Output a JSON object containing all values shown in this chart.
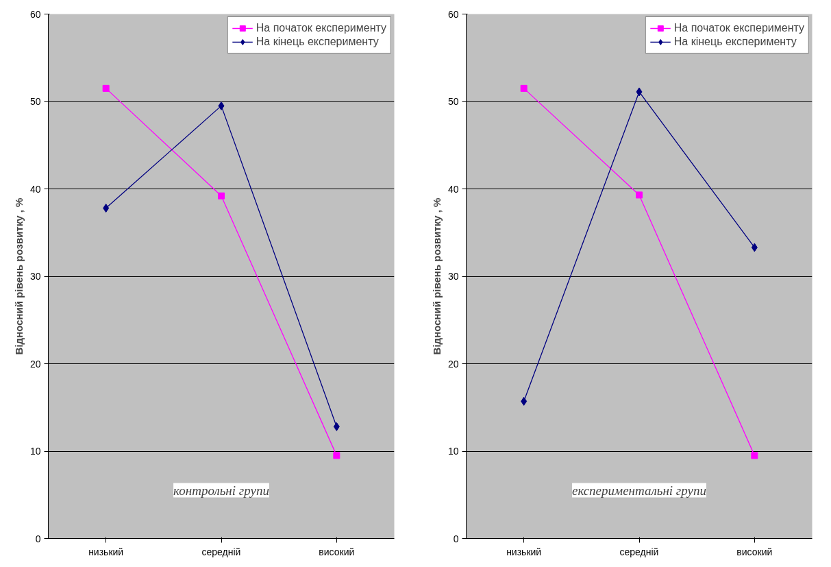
{
  "chart_data": [
    {
      "type": "line",
      "ylabel": "Відносний рівень розвитку , %",
      "categories": [
        "низький",
        "середній",
        "високий"
      ],
      "ylim": [
        0,
        60
      ],
      "yticks": [
        0,
        10,
        20,
        30,
        40,
        50,
        60
      ],
      "grid": "y",
      "legend": "top right",
      "annotations": [
        "контрольні групи"
      ],
      "series": [
        {
          "name": "На початок експерименту",
          "color": "#ff00ff",
          "marker": "square",
          "values": [
            51.5,
            39.2,
            9.5
          ]
        },
        {
          "name": "На кінець експерименту",
          "color": "#000080",
          "marker": "diamond",
          "values": [
            37.8,
            49.5,
            12.8
          ]
        }
      ]
    },
    {
      "type": "line",
      "ylabel": "Відносний рівень розвитку , %",
      "categories": [
        "низький",
        "середній",
        "високий"
      ],
      "ylim": [
        0,
        60
      ],
      "yticks": [
        0,
        10,
        20,
        30,
        40,
        50,
        60
      ],
      "grid": "y",
      "legend": "top right",
      "annotations": [
        "експериментальні групи"
      ],
      "series": [
        {
          "name": "На початок експерименту",
          "color": "#ff00ff",
          "marker": "square",
          "values": [
            51.5,
            39.3,
            9.5
          ]
        },
        {
          "name": "На кінець експерименту",
          "color": "#000080",
          "marker": "diamond",
          "values": [
            15.7,
            51.1,
            33.3
          ]
        }
      ]
    }
  ]
}
